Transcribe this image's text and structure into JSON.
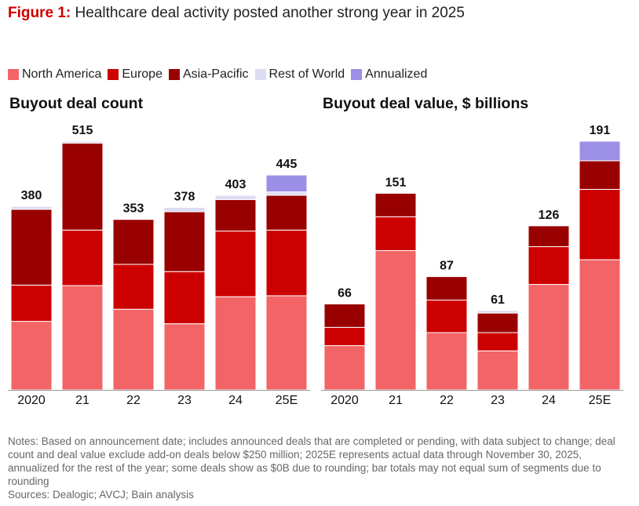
{
  "figure_label": "Figure 1:",
  "title": "Healthcare deal activity posted another strong year in 2025",
  "chart_data": [
    {
      "type": "bar",
      "stacked": true,
      "title": "Buyout deal count",
      "categories": [
        "2020",
        "21",
        "22",
        "23",
        "24",
        "25E"
      ],
      "series": [
        {
          "name": "North America",
          "color": "#f26466",
          "values": [
            142,
            216,
            167,
            137,
            193,
            195
          ]
        },
        {
          "name": "Europe",
          "color": "#cc0000",
          "values": [
            75,
            115,
            93,
            108,
            136,
            136
          ]
        },
        {
          "name": "Asia-Pacific",
          "color": "#990000",
          "values": [
            157,
            180,
            93,
            124,
            65,
            72
          ]
        },
        {
          "name": "Rest of World",
          "color": "#dcdcf2",
          "values": [
            6,
            4,
            0,
            9,
            9,
            7
          ]
        },
        {
          "name": "Annualized",
          "color": "#9c8fe6",
          "values": [
            0,
            0,
            0,
            0,
            0,
            35
          ]
        }
      ],
      "totals": [
        380,
        515,
        353,
        378,
        403,
        445
      ]
    },
    {
      "type": "bar",
      "stacked": true,
      "title": "Buyout deal value, $ billions",
      "categories": [
        "2020",
        "21",
        "22",
        "23",
        "24",
        "25E"
      ],
      "series": [
        {
          "name": "North America",
          "color": "#f26466",
          "values": [
            34,
            107,
            44,
            30,
            81,
            100
          ]
        },
        {
          "name": "Europe",
          "color": "#cc0000",
          "values": [
            14,
            26,
            25,
            14,
            29,
            54
          ]
        },
        {
          "name": "Asia-Pacific",
          "color": "#990000",
          "values": [
            18,
            18,
            18,
            15,
            16,
            22
          ]
        },
        {
          "name": "Rest of World",
          "color": "#dcdcf2",
          "values": [
            0,
            0,
            0,
            2,
            0,
            0
          ]
        },
        {
          "name": "Annualized",
          "color": "#9c8fe6",
          "values": [
            0,
            0,
            0,
            0,
            0,
            15
          ]
        }
      ],
      "totals": [
        66,
        151,
        87,
        61,
        126,
        191
      ]
    }
  ],
  "notes": "Notes: Based on announcement date; includes announced deals that are completed or pending, with data subject to change; deal count and deal value exclude add-on deals below $250 million; 2025E represents actual data through November 30, 2025, annualized for the rest of the year; some deals show as $0B due to rounding; bar totals may not equal sum of segments due to rounding",
  "sources": "Sources: Dealogic; AVCJ; Bain analysis"
}
